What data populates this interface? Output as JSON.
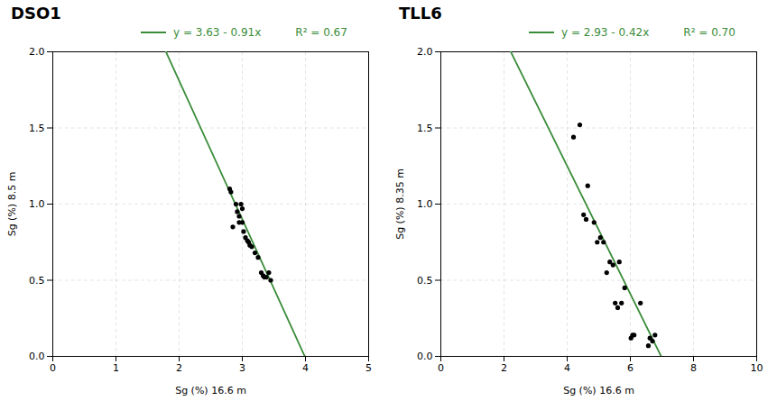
{
  "chart_data": [
    {
      "type": "scatter",
      "title": "DSO1",
      "xlabel": "Sg (%) 16.6 m",
      "ylabel": "Sg (%) 8.5 m",
      "xlim": [
        0,
        5
      ],
      "ylim": [
        0,
        2
      ],
      "xticks": [
        0,
        1,
        2,
        3,
        4,
        5
      ],
      "yticks": [
        {
          "value": 0,
          "label": "0.0"
        },
        0.5,
        {
          "value": 1,
          "label": "1.0"
        },
        1.5,
        {
          "value": 2,
          "label": "2.0"
        }
      ],
      "grid": true,
      "color": "black",
      "x": [
        2.8,
        2.82,
        2.85,
        2.9,
        2.92,
        2.95,
        2.95,
        2.98,
        3.0,
        3.0,
        3.02,
        3.05,
        3.08,
        3.1,
        3.12,
        3.15,
        3.2,
        3.25,
        3.3,
        3.33,
        3.35,
        3.38,
        3.42,
        3.45
      ],
      "values": [
        1.1,
        1.08,
        0.85,
        1.0,
        0.95,
        0.92,
        0.88,
        1.0,
        0.97,
        0.88,
        0.82,
        0.78,
        0.76,
        0.75,
        0.73,
        0.72,
        0.68,
        0.65,
        0.55,
        0.53,
        0.52,
        0.52,
        0.55,
        0.5
      ],
      "fit": {
        "intercept": 3.63,
        "slope": -0.91,
        "color": "#3a8c3a"
      },
      "annotations": [
        "y = 3.63 - 0.91x",
        "R² = 0.67"
      ]
    },
    {
      "type": "scatter",
      "title": "TLL6",
      "xlabel": "Sg (%) 16.6 m",
      "ylabel": "Sg (%) 8.35 m",
      "xlim": [
        0,
        10
      ],
      "ylim": [
        0,
        2
      ],
      "xticks": [
        0,
        2,
        4,
        6,
        8,
        10
      ],
      "yticks": [
        {
          "value": 0,
          "label": "0.0"
        },
        0.5,
        {
          "value": 1,
          "label": "1.0"
        },
        1.5,
        {
          "value": 2,
          "label": "2.0"
        }
      ],
      "grid": true,
      "color": "black",
      "x": [
        4.2,
        4.4,
        4.52,
        4.6,
        4.65,
        4.85,
        4.95,
        5.05,
        5.15,
        5.25,
        5.35,
        5.45,
        5.52,
        5.6,
        5.65,
        5.72,
        5.82,
        6.02,
        6.07,
        6.12,
        6.32,
        6.57,
        6.62,
        6.7,
        6.78
      ],
      "values": [
        1.44,
        1.52,
        0.93,
        0.9,
        1.12,
        0.88,
        0.75,
        0.78,
        0.75,
        0.55,
        0.62,
        0.6,
        0.35,
        0.32,
        0.62,
        0.35,
        0.45,
        0.12,
        0.14,
        0.14,
        0.35,
        0.07,
        0.12,
        0.1,
        0.14
      ],
      "fit": {
        "intercept": 2.93,
        "slope": -0.42,
        "color": "#3a8c3a"
      },
      "annotations": [
        "y = 2.93 - 0.42x",
        "R² = 0.70"
      ]
    }
  ]
}
